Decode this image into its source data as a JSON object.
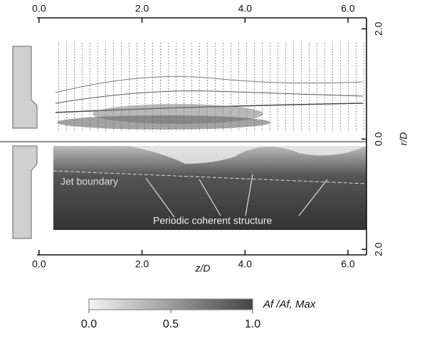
{
  "chart_data": {
    "type": "contour-image",
    "xlabel": "z/D",
    "ylabel": "r/D",
    "xlim": [
      -0.04,
      6.36
    ],
    "ylim": [
      -2.1,
      2.2
    ],
    "xticks": [
      {
        "value": 0,
        "label": "0.0"
      },
      {
        "value": 2,
        "label": "2.0"
      },
      {
        "value": 4,
        "label": "4.0"
      },
      {
        "value": 6,
        "label": "6.0"
      }
    ],
    "yticks": [
      {
        "value": 2,
        "label": "2.0"
      },
      {
        "value": 0,
        "label": "0.0"
      },
      {
        "value": -2,
        "label": "2.0"
      }
    ],
    "annotations": [
      "Jet boundary",
      "Periodic coherent structure"
    ],
    "colorbar": {
      "label": "Af /Af, Max",
      "clim": [
        0,
        1
      ],
      "ticks": [
        {
          "value": 0,
          "label": "0.0"
        },
        {
          "value": 0.5,
          "label": "0.5"
        },
        {
          "value": 1,
          "label": "1.0"
        }
      ]
    }
  }
}
